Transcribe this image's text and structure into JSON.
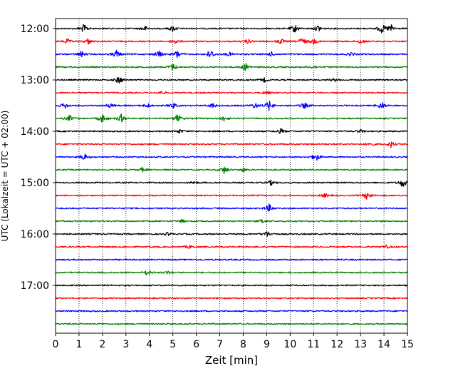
{
  "chart_data": {
    "type": "line",
    "title": "",
    "xlabel": "Zeit  [min]",
    "ylabel": "UTC (Lokalzeit = UTC + 02:00)",
    "xlim": [
      0,
      15
    ],
    "x_ticks": [
      0,
      1,
      2,
      3,
      4,
      5,
      6,
      7,
      8,
      9,
      10,
      11,
      12,
      13,
      14,
      15
    ],
    "x_tick_labels": [
      "0",
      "1",
      "2",
      "3",
      "4",
      "5",
      "6",
      "7",
      "8",
      "9",
      "10",
      "11",
      "12",
      "13",
      "14",
      "15"
    ],
    "y_tick_labels": [
      "12:00",
      "13:00",
      "14:00",
      "15:00",
      "16:00",
      "17:00"
    ],
    "grid": {
      "vertical": true,
      "style": "dotted"
    },
    "color_cycle": [
      "#000000",
      "#ff0000",
      "#0000ff",
      "#008000"
    ],
    "traces": [
      {
        "start": "12:00",
        "color": "#000000",
        "events": [
          [
            1.2,
            0.9
          ],
          [
            3.8,
            0.5
          ],
          [
            5.0,
            0.6
          ],
          [
            10.2,
            0.9
          ],
          [
            11.2,
            0.7
          ],
          [
            13.9,
            1.0
          ],
          [
            14.3,
            0.8
          ]
        ]
      },
      {
        "start": "12:15",
        "color": "#ff0000",
        "events": [
          [
            0.5,
            0.5
          ],
          [
            1.4,
            0.6
          ],
          [
            5.1,
            0.5
          ],
          [
            8.2,
            0.4
          ],
          [
            9.6,
            0.6
          ],
          [
            10.5,
            0.8
          ],
          [
            11.0,
            0.5
          ],
          [
            13.0,
            0.5
          ]
        ]
      },
      {
        "start": "12:30",
        "color": "#0000ff",
        "events": [
          [
            1.1,
            0.6
          ],
          [
            2.6,
            0.8
          ],
          [
            4.4,
            0.7
          ],
          [
            5.2,
            0.9
          ],
          [
            6.6,
            1.0
          ],
          [
            7.4,
            0.4
          ],
          [
            9.2,
            0.4
          ],
          [
            12.6,
            0.4
          ]
        ]
      },
      {
        "start": "12:45",
        "color": "#008000",
        "events": [
          [
            5.0,
            0.7
          ],
          [
            8.1,
            0.8
          ],
          [
            11.0,
            0.3
          ]
        ]
      },
      {
        "start": "13:00",
        "color": "#000000",
        "events": [
          [
            2.7,
            0.8
          ],
          [
            8.9,
            0.4
          ],
          [
            11.9,
            0.3
          ]
        ]
      },
      {
        "start": "13:15",
        "color": "#ff0000",
        "events": [
          [
            4.5,
            0.3
          ],
          [
            9.0,
            0.3
          ]
        ]
      },
      {
        "start": "13:30",
        "color": "#0000ff",
        "events": [
          [
            0.4,
            0.6
          ],
          [
            2.3,
            0.5
          ],
          [
            3.9,
            0.5
          ],
          [
            5.0,
            0.6
          ],
          [
            6.7,
            0.5
          ],
          [
            8.5,
            0.6
          ],
          [
            9.1,
            1.0
          ],
          [
            10.6,
            0.6
          ],
          [
            13.9,
            0.8
          ]
        ]
      },
      {
        "start": "13:45",
        "color": "#008000",
        "events": [
          [
            0.6,
            0.6
          ],
          [
            2.0,
            0.9
          ],
          [
            2.8,
            0.8
          ],
          [
            5.2,
            0.8
          ],
          [
            7.2,
            0.6
          ]
        ]
      },
      {
        "start": "14:00",
        "color": "#000000",
        "events": [
          [
            5.3,
            0.4
          ],
          [
            9.6,
            0.5
          ],
          [
            13.0,
            0.3
          ]
        ]
      },
      {
        "start": "14:15",
        "color": "#ff0000",
        "events": [
          [
            13.4,
            0.4
          ],
          [
            14.3,
            0.6
          ]
        ]
      },
      {
        "start": "14:30",
        "color": "#0000ff",
        "events": [
          [
            1.2,
            0.8
          ],
          [
            11.1,
            0.9
          ]
        ]
      },
      {
        "start": "14:45",
        "color": "#008000",
        "events": [
          [
            3.7,
            0.4
          ],
          [
            7.2,
            0.8
          ],
          [
            8.0,
            0.4
          ]
        ]
      },
      {
        "start": "15:00",
        "color": "#000000",
        "events": [
          [
            5.9,
            0.3
          ],
          [
            9.2,
            0.5
          ],
          [
            14.8,
            1.0
          ]
        ]
      },
      {
        "start": "15:15",
        "color": "#ff0000",
        "events": [
          [
            11.5,
            0.4
          ],
          [
            13.3,
            0.9
          ]
        ]
      },
      {
        "start": "15:30",
        "color": "#0000ff",
        "events": [
          [
            9.1,
            0.8
          ]
        ]
      },
      {
        "start": "15:45",
        "color": "#008000",
        "events": [
          [
            5.4,
            0.3
          ],
          [
            8.8,
            0.4
          ]
        ]
      },
      {
        "start": "16:00",
        "color": "#000000",
        "events": [
          [
            4.8,
            0.3
          ],
          [
            9.0,
            0.6
          ]
        ]
      },
      {
        "start": "16:15",
        "color": "#ff0000",
        "events": [
          [
            5.7,
            0.3
          ],
          [
            14.1,
            0.3
          ]
        ]
      },
      {
        "start": "16:30",
        "color": "#0000ff",
        "events": []
      },
      {
        "start": "16:45",
        "color": "#008000",
        "events": [
          [
            3.9,
            0.6
          ],
          [
            4.8,
            0.3
          ]
        ]
      },
      {
        "start": "17:00",
        "color": "#000000",
        "events": []
      },
      {
        "start": "17:15",
        "color": "#ff0000",
        "events": []
      },
      {
        "start": "17:30",
        "color": "#0000ff",
        "events": []
      },
      {
        "start": "17:45",
        "color": "#008000",
        "events": []
      }
    ]
  }
}
